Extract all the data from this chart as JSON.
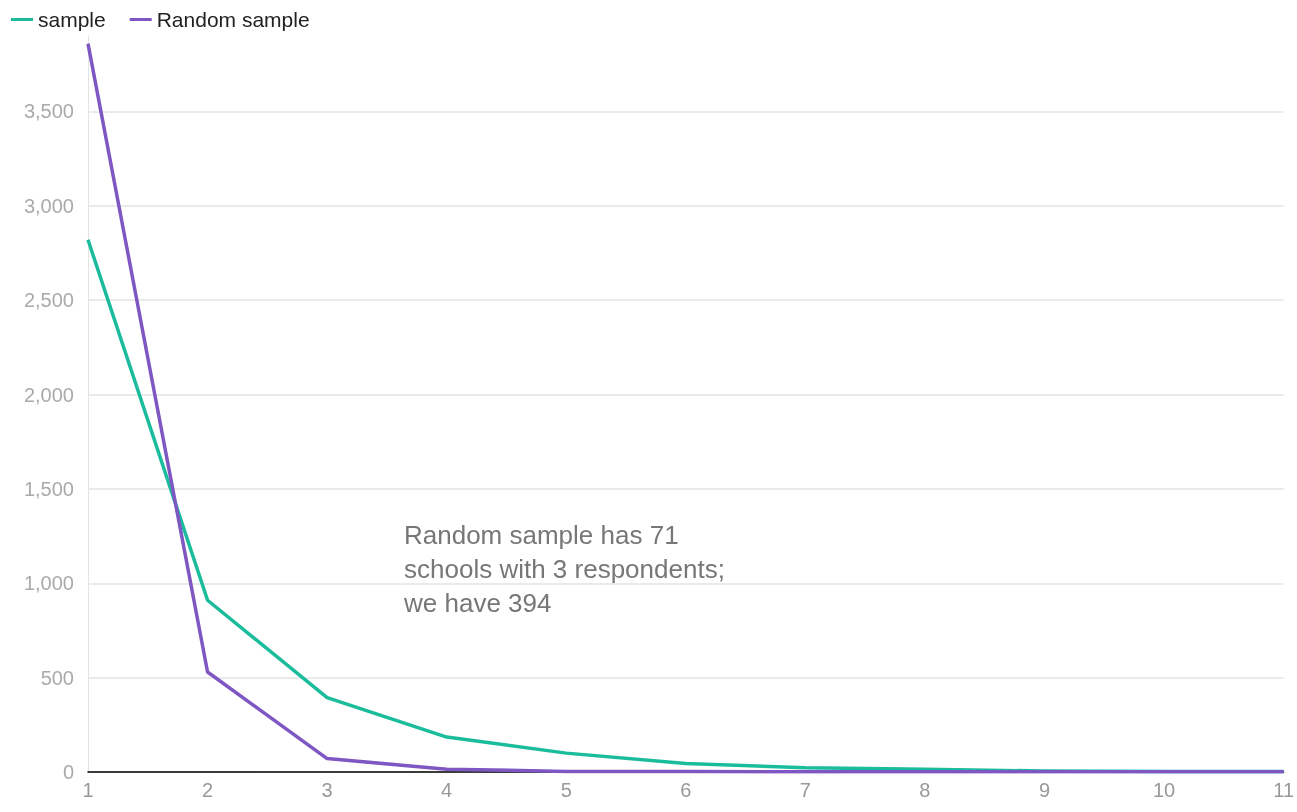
{
  "chart_data": {
    "type": "line",
    "categories": [
      "1",
      "2",
      "3",
      "4",
      "5",
      "6",
      "7",
      "8",
      "9",
      "10",
      "11"
    ],
    "series": [
      {
        "name": "sample",
        "color": "#1abc9c",
        "values": [
          2820,
          910,
          394,
          185,
          100,
          45,
          22,
          15,
          5,
          3,
          2
        ]
      },
      {
        "name": "Random sample",
        "color": "#7e57c2",
        "values": [
          3860,
          530,
          71,
          15,
          3,
          2,
          1,
          1,
          1,
          1,
          1
        ]
      }
    ],
    "ylim": [
      0,
      3900
    ],
    "yticks": [
      0,
      500,
      {
        "value": 1000,
        "label": "1,000"
      },
      {
        "value": 1500,
        "label": "1,500"
      },
      {
        "value": 2000,
        "label": "2,000"
      },
      {
        "value": 2500,
        "label": "2,500"
      },
      {
        "value": 3000,
        "label": "3,000"
      },
      {
        "value": 3500,
        "label": "3,500"
      }
    ],
    "grid": "y",
    "legend": "top left",
    "marker": "none",
    "line_style": "solid",
    "annotations": [
      "Random sample has 71\nschools with 3 respondents;\nwe have 394"
    ]
  }
}
